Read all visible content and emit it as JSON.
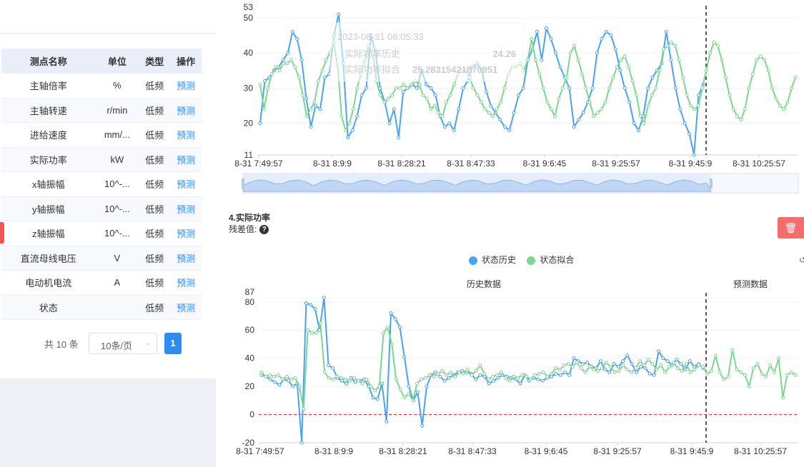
{
  "table": {
    "headers": [
      "测点名称",
      "单位",
      "类型",
      "操作"
    ],
    "rows": [
      [
        "主轴倍率",
        "%",
        "低频",
        "预测"
      ],
      [
        "主轴转速",
        "r/min",
        "低频",
        "预测"
      ],
      [
        "进给速度",
        "mm/...",
        "低频",
        "预测"
      ],
      [
        "实际功率",
        "kW",
        "低频",
        "预测"
      ],
      [
        "x轴振幅",
        "10^-...",
        "低频",
        "预测"
      ],
      [
        "y轴振幅",
        "10^-...",
        "低频",
        "预测"
      ],
      [
        "z轴振幅",
        "10^-...",
        "低频",
        "预测"
      ],
      [
        "直流母线电压",
        "V",
        "低频",
        "预测"
      ],
      [
        "电动机电流",
        "A",
        "低频",
        "预测"
      ],
      [
        "状态",
        "",
        "低频",
        "预测"
      ]
    ]
  },
  "pager": {
    "total": "共 10 条",
    "page_size": "10条/页",
    "current_page": "1"
  },
  "section4": {
    "title": "4.实际功率",
    "residual_label": "残差值:",
    "help_icon": "question-circle-icon",
    "delete_icon": "trash-icon"
  },
  "legend": {
    "series1": "状态历史",
    "series2": "状态拟合",
    "color1": "#4aa3f0",
    "color2": "#7dd68f"
  },
  "tooltip": {
    "time": "2023-08-31 08:05:33",
    "series1_label": "实际功率历史",
    "series1_value": "24.26",
    "series2_label": "实际功率拟合",
    "series2_value": "25.28315421870951"
  },
  "chart_data": [
    {
      "type": "line",
      "title": "",
      "region_labels": [
        "历史数据",
        "预测数据"
      ],
      "ylim": [
        11,
        53
      ],
      "yticks": [
        11,
        20,
        30,
        40,
        50,
        53
      ],
      "xticks": [
        "8-31 7:49:57",
        "8-31 8:9:9",
        "8-31 8:28:21",
        "8-31 8:47:33",
        "8-31 9:6:45",
        "8-31 9:25:57",
        "8-31 9:45:9",
        "8-31 10:25:57"
      ],
      "split_label": "8-31 9:45:9",
      "series": [
        {
          "name": "状态历史",
          "values": [
            20,
            32,
            33,
            35,
            36,
            38,
            40,
            46,
            44,
            38,
            27,
            19,
            25,
            24,
            33,
            34,
            45,
            51,
            37,
            16,
            18,
            22,
            28,
            30,
            45,
            40,
            30,
            26,
            20,
            24,
            16,
            29,
            30,
            31,
            30,
            35,
            31,
            30,
            28,
            22,
            19,
            20,
            18,
            24,
            30,
            32,
            36,
            37,
            35,
            29,
            25,
            23,
            21,
            19,
            18,
            23,
            28,
            30,
            38,
            41,
            46,
            38,
            47,
            44,
            40,
            36,
            33,
            30,
            19,
            21,
            23,
            26,
            30,
            40,
            44,
            46,
            45,
            41,
            35,
            30,
            26,
            20,
            18,
            22,
            30,
            33,
            35,
            37,
            46,
            38,
            30,
            24,
            20,
            17,
            11,
            28,
            31
          ]
        },
        {
          "name": "状态拟合",
          "values": [
            31,
            24,
            30,
            34,
            36,
            35,
            37,
            37,
            38,
            36,
            33,
            28,
            22,
            24,
            26,
            32,
            35,
            38,
            40,
            43,
            36,
            22,
            18,
            20,
            24,
            30,
            34,
            38,
            42,
            40,
            32,
            28,
            26,
            27,
            28,
            30,
            30,
            31,
            30,
            31,
            32,
            31,
            28,
            27,
            24,
            25,
            23,
            22,
            26,
            28,
            31,
            34,
            35,
            35,
            33,
            30,
            28,
            26,
            24,
            23,
            22,
            24,
            26,
            30,
            34,
            36,
            36,
            37,
            35,
            38,
            44,
            38,
            34,
            30,
            26,
            24,
            22,
            27,
            30,
            33,
            40,
            42,
            38,
            34,
            30,
            26,
            22,
            23,
            24,
            26,
            30,
            33,
            36,
            38,
            39,
            36,
            32,
            28,
            22,
            20,
            25,
            28,
            30,
            35,
            41,
            42,
            43,
            42,
            38,
            33,
            28,
            25,
            24,
            25,
            30,
            35,
            40,
            43,
            42,
            38,
            33,
            28,
            24,
            22,
            21,
            24,
            30,
            34,
            38,
            39,
            38,
            35,
            30,
            27,
            25,
            24,
            26,
            30,
            33
          ]
        }
      ]
    },
    {
      "type": "line",
      "title": "4.实际功率",
      "region_labels": [
        "历史数据",
        "预测数据"
      ],
      "ylim": [
        -20,
        87
      ],
      "yticks": [
        -20,
        0,
        20,
        40,
        60,
        80,
        87
      ],
      "xticks": [
        "8-31 7:49:57",
        "8-31 8:9:9",
        "8-31 8:28:21",
        "8-31 8:47:33",
        "8-31 9:6:45",
        "8-31 9:25:57",
        "8-31 9:45:9",
        "8-31 10:25:57"
      ],
      "split_label": "8-31 9:45:9",
      "residual_line": 0,
      "series": [
        {
          "name": "状态历史",
          "values": [
            28,
            27,
            25,
            23,
            21,
            25,
            24,
            20,
            22,
            -23,
            79,
            78,
            75,
            60,
            83,
            35,
            33,
            26,
            24,
            22,
            26,
            23,
            24,
            25,
            20,
            12,
            11,
            22,
            -5,
            72,
            68,
            62,
            41,
            20,
            10,
            16,
            -8,
            20,
            28,
            30,
            27,
            24,
            26,
            28,
            30,
            31,
            30,
            29,
            25,
            28,
            27,
            22,
            24,
            26,
            28,
            27,
            26,
            25,
            22,
            28,
            24,
            26,
            25,
            24,
            26,
            27,
            29,
            28,
            30,
            28,
            40,
            38,
            36,
            37,
            34,
            33,
            38,
            32,
            30,
            36,
            34,
            38,
            42,
            36,
            30,
            34,
            33,
            29,
            28,
            45,
            40,
            38,
            35,
            39,
            36,
            32,
            38,
            34,
            36,
            33
          ]
        },
        {
          "name": "状态拟合",
          "values": [
            30,
            27,
            28,
            27,
            28,
            25,
            27,
            25,
            26,
            20,
            4,
            60,
            58,
            58,
            65,
            30,
            26,
            25,
            27,
            26,
            25,
            24,
            26,
            24,
            22,
            25,
            20,
            17,
            20,
            58,
            62,
            50,
            25,
            18,
            12,
            15,
            10,
            22,
            25,
            26,
            28,
            27,
            29,
            31,
            28,
            30,
            27,
            30,
            29,
            32,
            28,
            31,
            35,
            29,
            25,
            27,
            28,
            30,
            26,
            24,
            27,
            26,
            28,
            27,
            25,
            28,
            29,
            30,
            27,
            29,
            33,
            32,
            35,
            36,
            34,
            37,
            33,
            30,
            34,
            32,
            31,
            33,
            37,
            34,
            30,
            31,
            35,
            32,
            30,
            33,
            38,
            35,
            39,
            36,
            32,
            35,
            30,
            34,
            37,
            33,
            31,
            36,
            30,
            32,
            35,
            34,
            29,
            31,
            42,
            30,
            25,
            27,
            46,
            32,
            30,
            28,
            20,
            33,
            36,
            29,
            27,
            35,
            30,
            40,
            12,
            28,
            30,
            28
          ]
        }
      ]
    }
  ]
}
